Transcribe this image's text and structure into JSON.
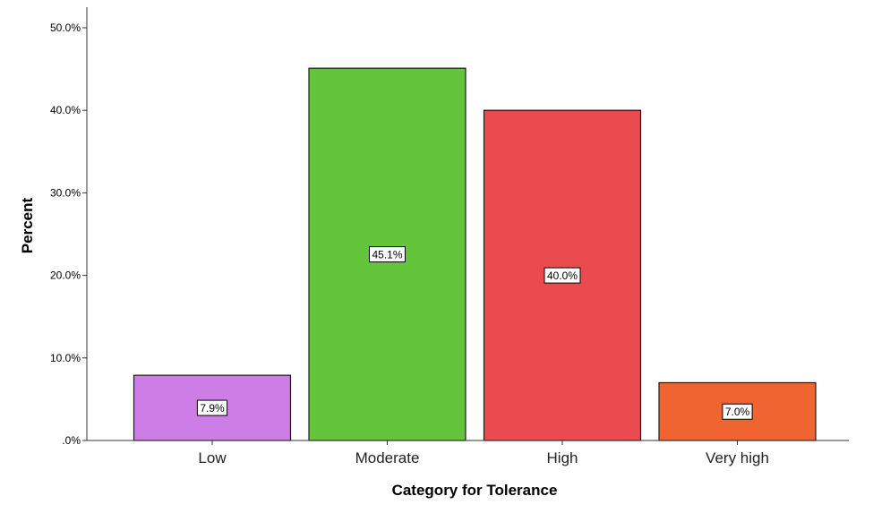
{
  "chart_data": {
    "type": "bar",
    "title": "",
    "xlabel": "Category for Tolerance",
    "ylabel": "Percent",
    "categories": [
      "Low",
      "Moderate",
      "High",
      "Very high"
    ],
    "values": [
      7.9,
      45.1,
      40.0,
      7.0
    ],
    "data_labels": [
      "7.9%",
      "45.1%",
      "40.0%",
      "7.0%"
    ],
    "bar_colors": [
      "#cc7de6",
      "#62c53a",
      "#ea4b4e",
      "#ef6431"
    ],
    "ylim": [
      0,
      50
    ],
    "yticks": [
      0,
      10,
      20,
      30,
      40,
      50
    ],
    "ytick_labels": [
      ".0%",
      "10.0%",
      "20.0%",
      "30.0%",
      "40.0%",
      "50.0%"
    ],
    "grid": false,
    "legend": "none"
  }
}
